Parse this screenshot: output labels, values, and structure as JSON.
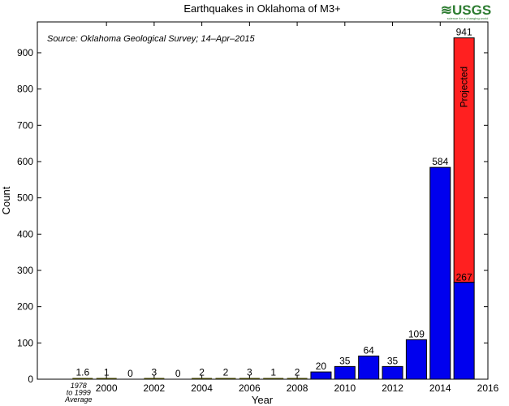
{
  "chart_data": {
    "type": "bar",
    "title": "Earthquakes in Oklahoma of M3+",
    "annotation": "Source: Oklahoma Geological Survey; 14–Apr–2015",
    "logo": "USGS",
    "logo_tagline": "science for a changing world",
    "xlabel": "Year",
    "ylabel": "Count",
    "ylim": [
      0,
      985
    ],
    "yticks": [
      0,
      100,
      200,
      300,
      400,
      500,
      600,
      700,
      800,
      900
    ],
    "xticks": [
      "2000",
      "2002",
      "2004",
      "2006",
      "2008",
      "2010",
      "2012",
      "2014",
      "2016"
    ],
    "average_label": [
      "1978",
      "to 1999",
      "Average"
    ],
    "categories": [
      "1978 to 1999 Average",
      "2000",
      "2001",
      "2002",
      "2003",
      "2004",
      "2005",
      "2006",
      "2007",
      "2008",
      "2009",
      "2010",
      "2011",
      "2012",
      "2013",
      "2014",
      "2015"
    ],
    "values": [
      1.6,
      1,
      0,
      3,
      0,
      2,
      2,
      3,
      1,
      2,
      20,
      35,
      64,
      35,
      109,
      584,
      267
    ],
    "labels": [
      "1.6",
      "1",
      "0",
      "3",
      "0",
      "2",
      "2",
      "3",
      "1",
      "2",
      "20",
      "35",
      "64",
      "35",
      "109",
      "584",
      "267"
    ],
    "projected": {
      "category": "2015",
      "total": 941,
      "label": "941",
      "text": "Projected"
    },
    "colors": {
      "observed": "#0000ee",
      "projected": "#ff2020",
      "logo": "#2e7d32"
    }
  }
}
